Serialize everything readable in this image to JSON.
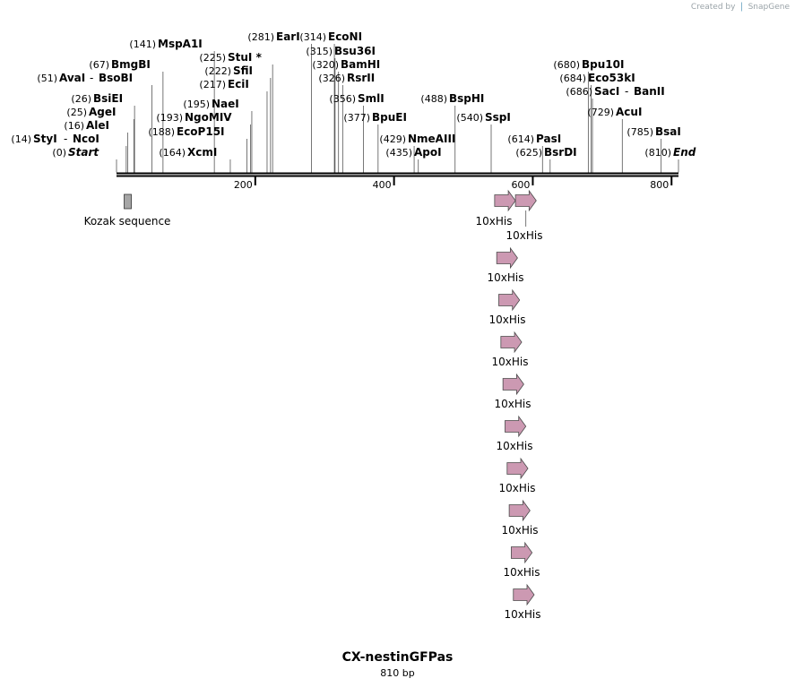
{
  "app": {
    "credit_prefix": "Created by",
    "credit_brand": "SnapGene"
  },
  "sequence": {
    "name": "CX-nestinGFPas",
    "length_label": "810 bp",
    "length": 810
  },
  "ruler": {
    "ticks": [
      200,
      400,
      600,
      800
    ]
  },
  "enzymes": [
    {
      "name": "Start",
      "pos": 0,
      "pos_label": "(0)",
      "italic": true
    },
    {
      "name": "StyI",
      "pos": 14,
      "pos_label": "(14)",
      "pair": "NcoI"
    },
    {
      "name": "AleI",
      "pos": 16,
      "pos_label": "(16)"
    },
    {
      "name": "AgeI",
      "pos": 25,
      "pos_label": "(25)"
    },
    {
      "name": "BsiEI",
      "pos": 26,
      "pos_label": "(26)"
    },
    {
      "name": "AvaI",
      "pos": 51,
      "pos_label": "(51)",
      "pair": "BsoBI"
    },
    {
      "name": "BmgBI",
      "pos": 67,
      "pos_label": "(67)"
    },
    {
      "name": "MspA1I",
      "pos": 141,
      "pos_label": "(141)"
    },
    {
      "name": "XcmI",
      "pos": 164,
      "pos_label": "(164)"
    },
    {
      "name": "EcoP15I",
      "pos": 188,
      "pos_label": "(188)"
    },
    {
      "name": "NgoMIV",
      "pos": 193,
      "pos_label": "(193)"
    },
    {
      "name": "NaeI",
      "pos": 195,
      "pos_label": "(195)"
    },
    {
      "name": "EciI",
      "pos": 217,
      "pos_label": "(217)"
    },
    {
      "name": "SfiI",
      "pos": 222,
      "pos_label": "(222)"
    },
    {
      "name": "StuI *",
      "pos": 225,
      "pos_label": "(225)"
    },
    {
      "name": "EarI",
      "pos": 281,
      "pos_label": "(281)"
    },
    {
      "name": "EcoNI",
      "pos": 314,
      "pos_label": "(314)"
    },
    {
      "name": "Bsu36I",
      "pos": 315,
      "pos_label": "(315)"
    },
    {
      "name": "BamHI",
      "pos": 320,
      "pos_label": "(320)"
    },
    {
      "name": "RsrII",
      "pos": 326,
      "pos_label": "(326)"
    },
    {
      "name": "SmlI",
      "pos": 356,
      "pos_label": "(356)"
    },
    {
      "name": "BpuEI",
      "pos": 377,
      "pos_label": "(377)"
    },
    {
      "name": "NmeAIII",
      "pos": 429,
      "pos_label": "(429)"
    },
    {
      "name": "ApoI",
      "pos": 435,
      "pos_label": "(435)"
    },
    {
      "name": "BspHI",
      "pos": 488,
      "pos_label": "(488)"
    },
    {
      "name": "SspI",
      "pos": 540,
      "pos_label": "(540)"
    },
    {
      "name": "PasI",
      "pos": 614,
      "pos_label": "(614)"
    },
    {
      "name": "BsrDI",
      "pos": 625,
      "pos_label": "(625)"
    },
    {
      "name": "Bpu10I",
      "pos": 680,
      "pos_label": "(680)"
    },
    {
      "name": "Eco53kI",
      "pos": 684,
      "pos_label": "(684)"
    },
    {
      "name": "SacI",
      "pos": 686,
      "pos_label": "(686)",
      "pair": "BanII"
    },
    {
      "name": "AcuI",
      "pos": 729,
      "pos_label": "(729)"
    },
    {
      "name": "BsaI",
      "pos": 785,
      "pos_label": "(785)"
    },
    {
      "name": "End",
      "pos": 810,
      "pos_label": "(810)",
      "italic": true
    }
  ],
  "features": [
    {
      "name": "Kozak sequence",
      "type": "box",
      "color": "#a6a6a6",
      "start": 11,
      "end": 21
    },
    {
      "name": "10xHis",
      "type": "arrow",
      "color": "#cc99b2",
      "start": 545,
      "end": 575
    },
    {
      "name": "10xHis",
      "type": "arrow",
      "color": "#cc99b2",
      "start": 575,
      "end": 605
    },
    {
      "name": "10xHis",
      "type": "arrow",
      "color": "#cc99b2",
      "start": 548,
      "end": 578
    },
    {
      "name": "10xHis",
      "type": "arrow",
      "color": "#cc99b2",
      "start": 551,
      "end": 581
    },
    {
      "name": "10xHis",
      "type": "arrow",
      "color": "#cc99b2",
      "start": 554,
      "end": 584
    },
    {
      "name": "10xHis",
      "type": "arrow",
      "color": "#cc99b2",
      "start": 557,
      "end": 587
    },
    {
      "name": "10xHis",
      "type": "arrow",
      "color": "#cc99b2",
      "start": 560,
      "end": 590
    },
    {
      "name": "10xHis",
      "type": "arrow",
      "color": "#cc99b2",
      "start": 563,
      "end": 593
    },
    {
      "name": "10xHis",
      "type": "arrow",
      "color": "#cc99b2",
      "start": 566,
      "end": 596
    },
    {
      "name": "10xHis",
      "type": "arrow",
      "color": "#cc99b2",
      "start": 569,
      "end": 599
    },
    {
      "name": "10xHis",
      "type": "arrow",
      "color": "#cc99b2",
      "start": 572,
      "end": 602
    }
  ]
}
